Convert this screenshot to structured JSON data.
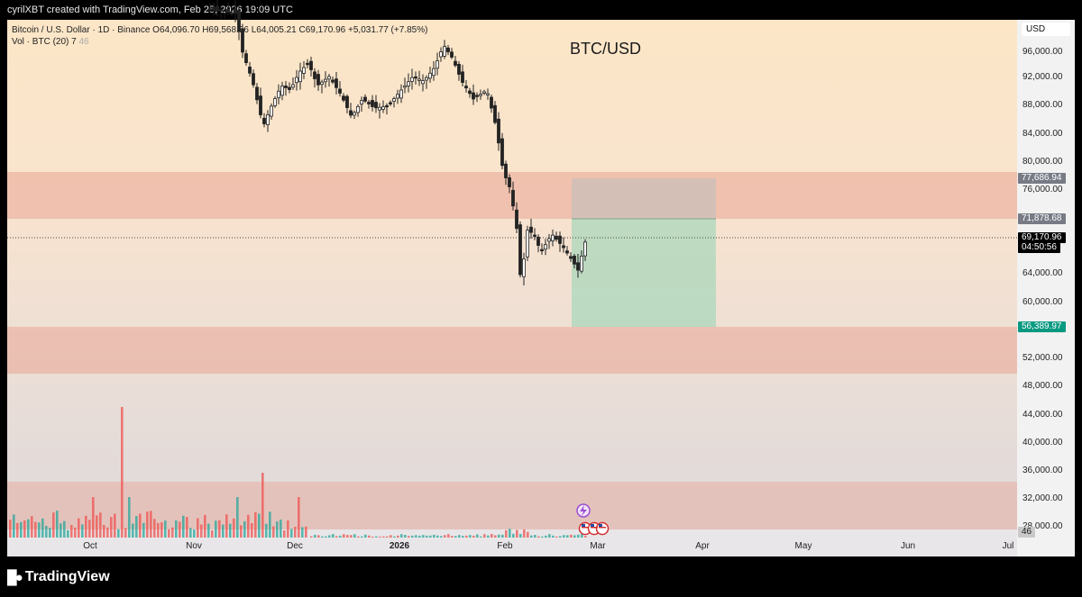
{
  "header": {
    "attribution": "cyrilXBT created with TradingView.com, Feb 25, 2026 19:09 UTC"
  },
  "legend": {
    "line1": "Bitcoin / U.S. Dollar · 1D · Binance  O64,096.70  H69,568.56  L64,005.21  C69,170.96  +5,031.77 (+7.85%)",
    "line2_prefix": "Vol · BTC (20)",
    "line2_v1": "7",
    "line2_v2": "46"
  },
  "chart": {
    "title": "BTC/USD"
  },
  "currency_selector": "USD",
  "price_axis": {
    "ticks": [
      "96,000.00",
      "92,000.00",
      "88,000.00",
      "84,000.00",
      "80,000.00",
      "76,000.00",
      "64,000.00",
      "60,000.00",
      "52,000.00",
      "48,000.00",
      "44,000.00",
      "40,000.00",
      "36,000.00",
      "32,000.00",
      "28,000.00"
    ],
    "badges": {
      "upper": "77,686.94",
      "middle": "71,878.68",
      "current_price": "69,170.96",
      "countdown": "04:50:56",
      "lower": "56,389.97",
      "volume": "46"
    }
  },
  "time_axis": [
    "Oct",
    "Nov",
    "Dec",
    "2026",
    "Feb",
    "Mar",
    "Apr",
    "May",
    "Jun",
    "Jul"
  ],
  "brand": {
    "name": "TradingView"
  },
  "colors": {
    "up": "#26a69a",
    "down": "#ef5350",
    "zone": "#e9a596",
    "target": "#9fd6b8",
    "stop": "#bdbdbd",
    "last_price_badge": "#000000",
    "target_badge": "#089981",
    "neutral_badge": "#787b86"
  },
  "icons": [
    "tradingview-logo-icon",
    "lightning-event-icon",
    "us-flag-event-icon"
  ]
}
